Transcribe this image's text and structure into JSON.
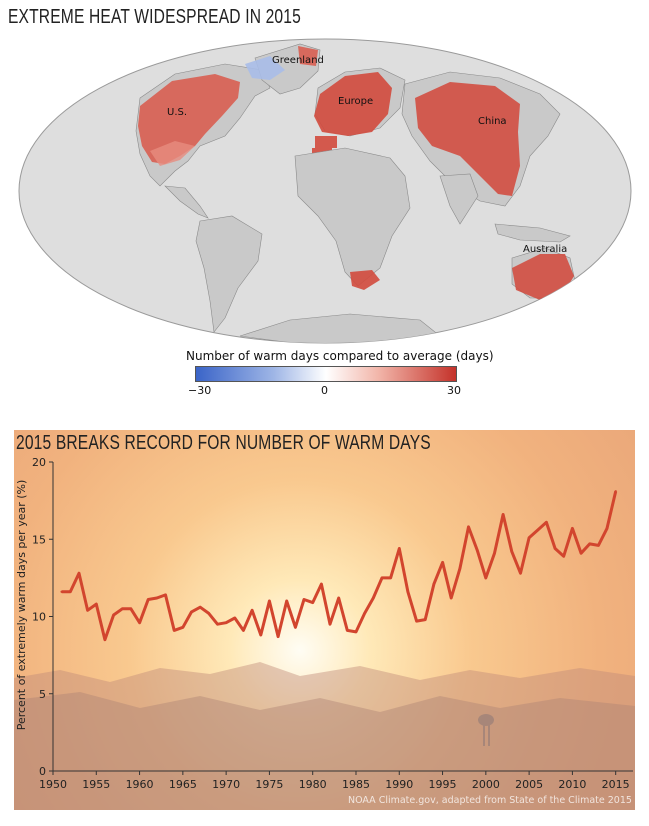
{
  "map_panel": {
    "title": "EXTREME HEAT WIDESPREAD IN 2015",
    "labels": {
      "greenland": "Greenland",
      "us": "U.S.",
      "europe": "Europe",
      "china": "China",
      "australia": "Australia"
    },
    "legend": {
      "title": "Number of warm days compared to average (days)",
      "ticks": [
        "−30",
        "0",
        "30"
      ],
      "colors": {
        "cold": "#3a64c8",
        "neutral": "#ffffff",
        "warm": "#c4322a"
      }
    }
  },
  "chart_panel": {
    "title": "2015 BREAKS RECORD FOR NUMBER OF WARM DAYS",
    "credit": "NOAA Climate.gov, adapted from State of the Climate 2015"
  },
  "chart_data": {
    "type": "line",
    "title": "2015 BREAKS RECORD FOR NUMBER OF WARM DAYS",
    "xlabel": "",
    "ylabel": "Percent of extremely warm days per year (%)",
    "xlim": [
      1950,
      2017
    ],
    "ylim": [
      0,
      20
    ],
    "xticks": [
      "1950",
      "1955",
      "1960",
      "1965",
      "1970",
      "1975",
      "1980",
      "1985",
      "1990",
      "1995",
      "2000",
      "2005",
      "2010",
      "2015"
    ],
    "yticks": [
      "0",
      "5",
      "10",
      "15",
      "20"
    ],
    "grid": false,
    "line_color": "#d2452e",
    "series": [
      {
        "x": [
          1951,
          1952,
          1953,
          1954,
          1955,
          1956,
          1957,
          1958,
          1959,
          1960,
          1961,
          1962,
          1963,
          1964,
          1965,
          1966,
          1967,
          1968,
          1969,
          1970,
          1971,
          1972,
          1973,
          1974,
          1975,
          1976,
          1977,
          1978,
          1979,
          1980,
          1981,
          1982,
          1983,
          1984,
          1985,
          1986,
          1987,
          1988,
          1989,
          1990,
          1991,
          1992,
          1993,
          1994,
          1995,
          1996,
          1997,
          1998,
          1999,
          2000,
          2001,
          2002,
          2003,
          2004,
          2005,
          2006,
          2007,
          2008,
          2009,
          2010,
          2011,
          2012,
          2013,
          2014,
          2015
        ],
        "values": [
          11.6,
          11.6,
          12.8,
          10.4,
          10.8,
          8.5,
          10.1,
          10.5,
          10.5,
          9.6,
          11.1,
          11.2,
          11.4,
          9.1,
          9.3,
          10.3,
          10.6,
          10.2,
          9.5,
          9.6,
          9.9,
          9.1,
          10.4,
          8.8,
          11.0,
          8.7,
          11.0,
          9.3,
          11.1,
          10.9,
          12.1,
          9.5,
          11.2,
          9.1,
          9.0,
          10.2,
          11.2,
          12.5,
          12.5,
          14.4,
          11.6,
          9.7,
          9.8,
          12.1,
          13.5,
          11.2,
          13.1,
          15.8,
          14.3,
          12.5,
          14.1,
          16.6,
          14.2,
          12.8,
          15.1,
          15.6,
          16.1,
          14.4,
          13.9,
          15.7,
          14.1,
          14.7,
          14.6,
          15.7,
          18.1
        ]
      }
    ]
  }
}
